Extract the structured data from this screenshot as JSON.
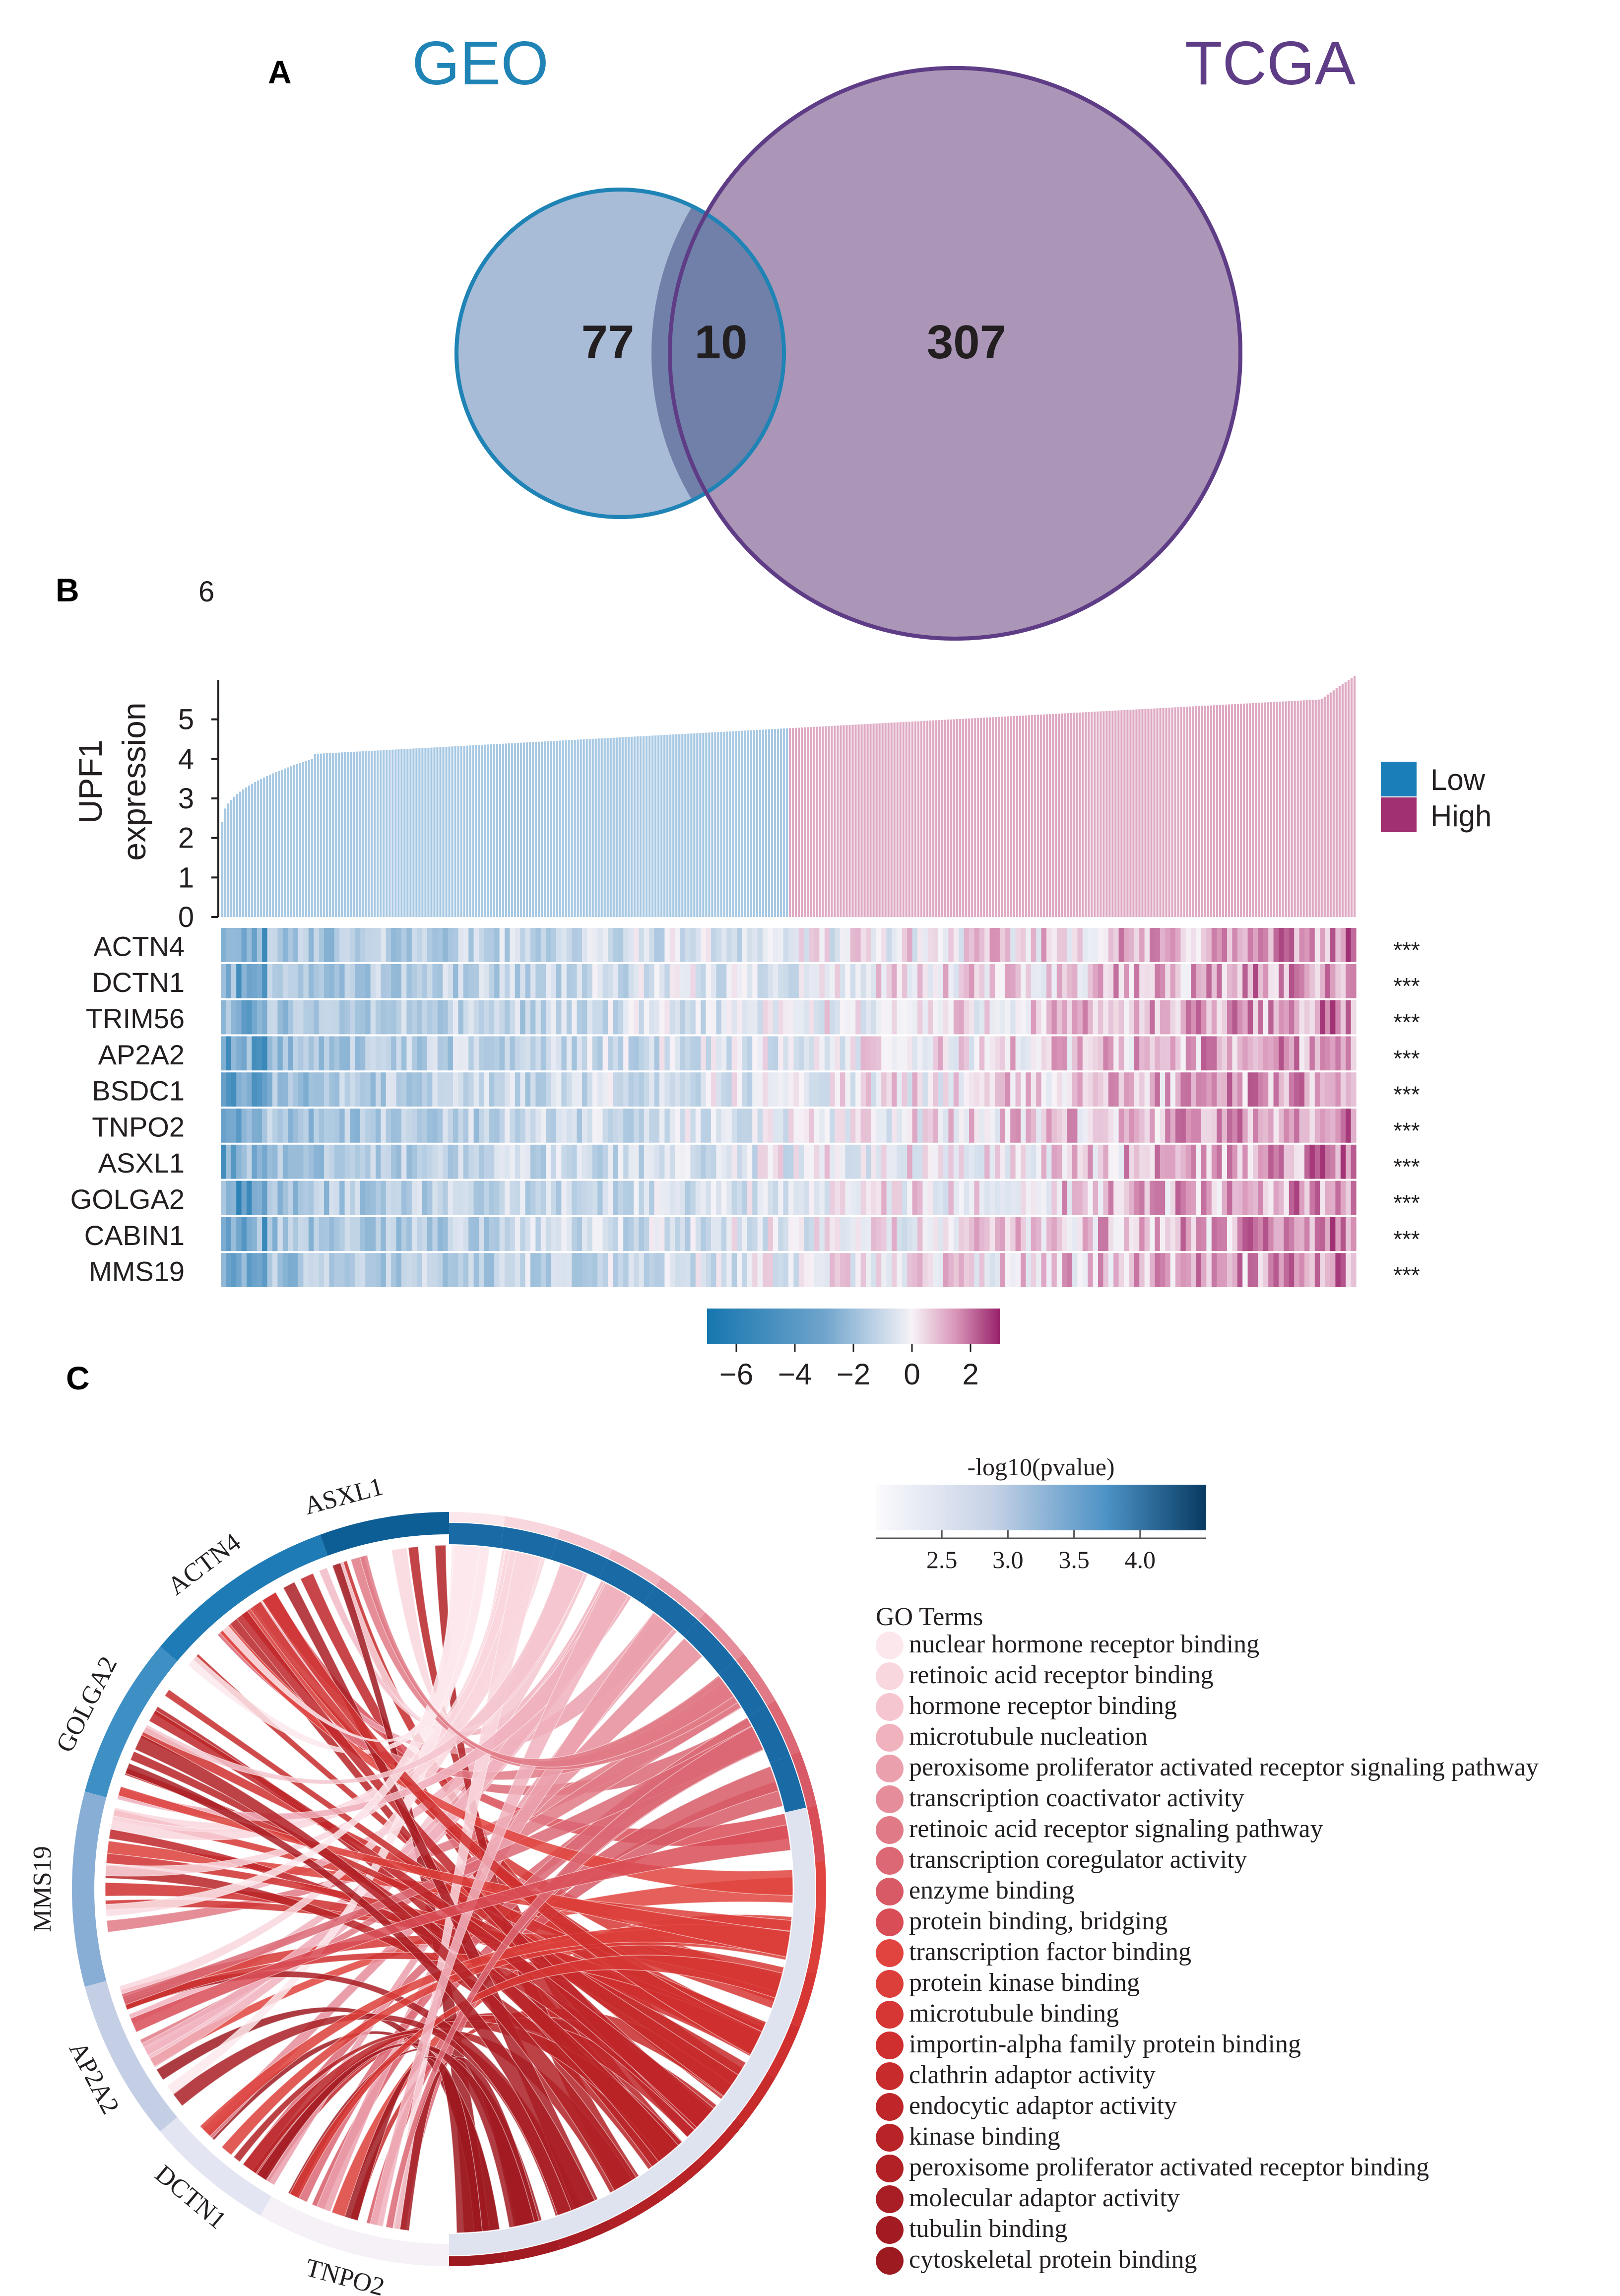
{
  "panels": {
    "a": "A",
    "b": "B",
    "c": "C"
  },
  "colors": {
    "geo": "#1f84b5",
    "tcga": "#5f3d86",
    "low": "#1a7fb8",
    "high": "#a0306f",
    "geo_fill": "#a8bcd8",
    "tcga_fill": "#a893b5",
    "overlap_fill": "#7080a8"
  },
  "chart_data": [
    {
      "type": "venn",
      "title": "",
      "sets": [
        {
          "name": "GEO",
          "unique": 77
        },
        {
          "name": "TCGA",
          "unique": 307
        }
      ],
      "intersection": 10
    },
    {
      "type": "heatmap",
      "stray_label": "6",
      "bar_panel": {
        "type": "bar",
        "ylabel_line1": "UPF1",
        "ylabel_line2": "expression",
        "ylim": [
          0,
          6
        ],
        "yticks": [
          "0",
          "1",
          "2",
          "3",
          "4",
          "5"
        ],
        "n_samples": 380,
        "low_fraction": 0.5,
        "legend": [
          {
            "label": "Low",
            "color": "#1a7fb8"
          },
          {
            "label": "High",
            "color": "#a0306f"
          }
        ]
      },
      "genes": [
        "ACTN4",
        "DCTN1",
        "TRIM56",
        "AP2A2",
        "BSDC1",
        "TNPO2",
        "ASXL1",
        "GOLGA2",
        "CABIN1",
        "MMS19"
      ],
      "significance": [
        "***",
        "***",
        "***",
        "***",
        "***",
        "***",
        "***",
        "***",
        "***",
        "***"
      ],
      "colorbar": {
        "min": -7,
        "max": 3,
        "ticks": [
          "−6",
          "−4",
          "−2",
          "0",
          "2"
        ],
        "tick_values": [
          -6,
          -4,
          -2,
          0,
          2
        ]
      }
    },
    {
      "type": "chord",
      "genes": [
        "ASXL1",
        "ACTN4",
        "GOLGA2",
        "MMS19",
        "AP2A2",
        "DCTN1",
        "TNPO2"
      ],
      "colorbar": {
        "title": "-log10(pvalue)",
        "min": 2.0,
        "max": 4.5,
        "ticks": [
          "2.5",
          "3.0",
          "3.5",
          "4.0"
        ],
        "tick_values": [
          2.5,
          3.0,
          3.5,
          4.0
        ]
      },
      "legend_title": "GO Terms",
      "go_terms": [
        "nuclear hormone receptor binding",
        "retinoic acid receptor binding",
        "hormone receptor binding",
        "microtubule nucleation",
        "peroxisome proliferator activated receptor signaling pathway",
        "transcription coactivator activity",
        "retinoic acid receptor signaling pathway",
        "transcription coregulator activity",
        "enzyme binding",
        "protein binding, bridging",
        "transcription factor binding",
        "protein kinase binding",
        "microtubule binding",
        "importin-alpha family protein binding",
        "clathrin adaptor activity",
        "endocytic adaptor activity",
        "kinase binding",
        "peroxisome proliferator activated receptor binding",
        "molecular adaptor activity",
        "tubulin binding",
        "cytoskeletal protein binding"
      ],
      "go_colors": [
        "#fce7ec",
        "#f9d7de",
        "#f5c6cf",
        "#f0b2bd",
        "#eba0ad",
        "#e58d9a",
        "#e07a86",
        "#db6874",
        "#d75a66",
        "#d94d57",
        "#e1443e",
        "#dc3e3a",
        "#d63734",
        "#cf302f",
        "#c72b2c",
        "#be2629",
        "#b82327",
        "#b12126",
        "#a91e24",
        "#a21b22",
        "#9d1a20"
      ]
    }
  ]
}
